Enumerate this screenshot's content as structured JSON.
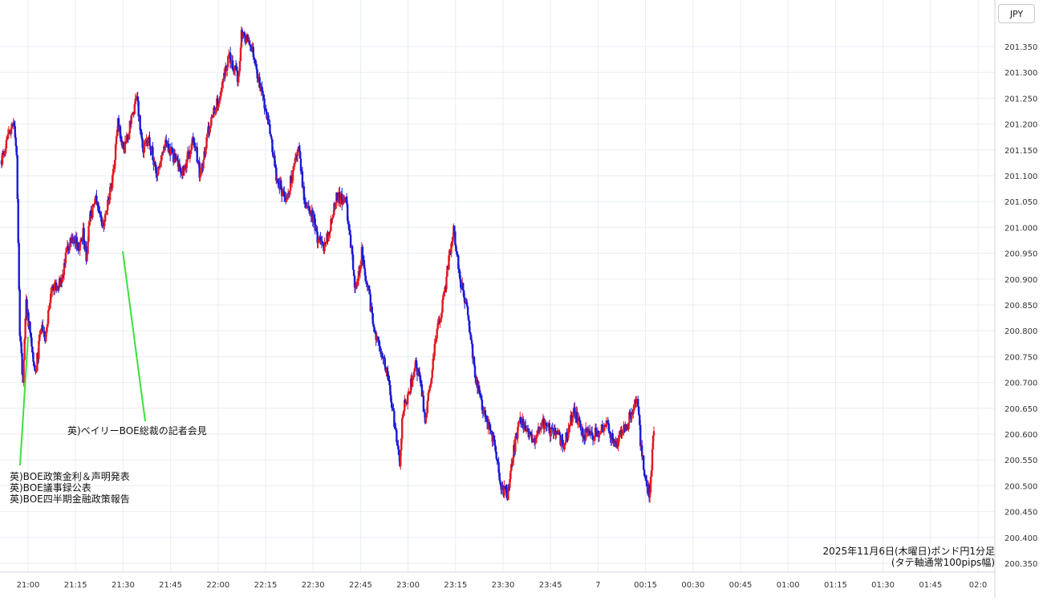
{
  "currency_label": "JPY",
  "annotations": {
    "policy": [
      "英)BOE政策金利＆声明発表",
      "英)BOE議事録公表",
      "英)BOE四半期金融政策報告"
    ],
    "press": "英)ベイリーBOE総裁の記者会見"
  },
  "caption": {
    "line1": "2025年11月6日(木曜日)ポンド円1分足",
    "line2": "(タテ軸通常100pips幅)"
  },
  "chart_data": {
    "type": "candlestick",
    "timeframe": "1分足",
    "currency": "JPY",
    "ylim": [
      200.33,
      201.41
    ],
    "y_ticks": [
      "201.350",
      "201.300",
      "201.250",
      "201.200",
      "201.150",
      "201.100",
      "201.050",
      "201.000",
      "200.950",
      "200.900",
      "200.850",
      "200.800",
      "200.750",
      "200.700",
      "200.650",
      "200.600",
      "200.550",
      "200.500",
      "200.450",
      "200.400",
      "200.350"
    ],
    "x_ticks": [
      "21:00",
      "21:15",
      "21:30",
      "21:45",
      "22:00",
      "22:15",
      "22:30",
      "22:45",
      "23:00",
      "23:15",
      "23:30",
      "23:45",
      "7",
      "00:15",
      "00:30",
      "00:45",
      "01:00",
      "01:15",
      "01:30",
      "01:45",
      "02:0"
    ],
    "colors": {
      "up": "#e01b24",
      "down": "#1a1ad6",
      "grid": "#e8eef3",
      "callout": "#3be03b"
    },
    "price_path": [
      [
        0,
        201.13
      ],
      [
        4,
        201.2
      ],
      [
        5,
        201.15
      ],
      [
        6,
        200.79
      ],
      [
        7,
        200.7
      ],
      [
        8,
        200.85
      ],
      [
        11,
        200.72
      ],
      [
        13,
        200.82
      ],
      [
        14,
        200.78
      ],
      [
        16,
        200.88
      ],
      [
        19,
        200.9
      ],
      [
        22,
        200.98
      ],
      [
        24,
        200.97
      ],
      [
        25,
        200.96
      ],
      [
        26,
        200.99
      ],
      [
        27,
        200.94
      ],
      [
        28,
        201.02
      ],
      [
        30,
        201.05
      ],
      [
        32,
        201.0
      ],
      [
        35,
        201.08
      ],
      [
        37,
        201.2
      ],
      [
        39,
        201.15
      ],
      [
        43,
        201.25
      ],
      [
        45,
        201.15
      ],
      [
        47,
        201.17
      ],
      [
        49,
        201.1
      ],
      [
        52,
        201.17
      ],
      [
        55,
        201.13
      ],
      [
        57,
        201.1
      ],
      [
        61,
        201.17
      ],
      [
        63,
        201.1
      ],
      [
        66,
        201.2
      ],
      [
        69,
        201.25
      ],
      [
        72,
        201.33
      ],
      [
        75,
        201.29
      ],
      [
        76,
        201.37
      ],
      [
        79,
        201.36
      ],
      [
        81,
        201.3
      ],
      [
        84,
        201.22
      ],
      [
        87,
        201.1
      ],
      [
        90,
        201.05
      ],
      [
        92,
        201.1
      ],
      [
        94,
        201.15
      ],
      [
        96,
        201.05
      ],
      [
        98,
        201.03
      ],
      [
        100,
        200.98
      ],
      [
        102,
        200.96
      ],
      [
        104,
        201.0
      ],
      [
        106,
        201.06
      ],
      [
        109,
        201.05
      ],
      [
        111,
        200.94
      ],
      [
        112,
        200.88
      ],
      [
        114,
        200.95
      ],
      [
        116,
        200.88
      ],
      [
        118,
        200.8
      ],
      [
        121,
        200.75
      ],
      [
        123,
        200.68
      ],
      [
        126,
        200.55
      ],
      [
        127,
        200.65
      ],
      [
        129,
        200.68
      ],
      [
        131,
        200.74
      ],
      [
        133,
        200.68
      ],
      [
        134,
        200.62
      ],
      [
        137,
        200.77
      ],
      [
        140,
        200.87
      ],
      [
        142,
        200.96
      ],
      [
        143,
        201.0
      ],
      [
        145,
        200.9
      ],
      [
        147,
        200.85
      ],
      [
        150,
        200.7
      ],
      [
        153,
        200.63
      ],
      [
        156,
        200.58
      ],
      [
        158,
        200.5
      ],
      [
        160,
        200.48
      ],
      [
        162,
        200.57
      ],
      [
        164,
        200.63
      ],
      [
        168,
        200.58
      ],
      [
        171,
        200.62
      ],
      [
        175,
        200.6
      ],
      [
        178,
        200.58
      ],
      [
        181,
        200.65
      ],
      [
        184,
        200.6
      ],
      [
        188,
        200.6
      ],
      [
        191,
        200.62
      ],
      [
        194,
        200.58
      ],
      [
        198,
        200.62
      ],
      [
        201,
        200.68
      ],
      [
        202,
        200.58
      ],
      [
        204,
        200.5
      ],
      [
        205,
        200.48
      ],
      [
        206,
        200.6
      ]
    ]
  }
}
